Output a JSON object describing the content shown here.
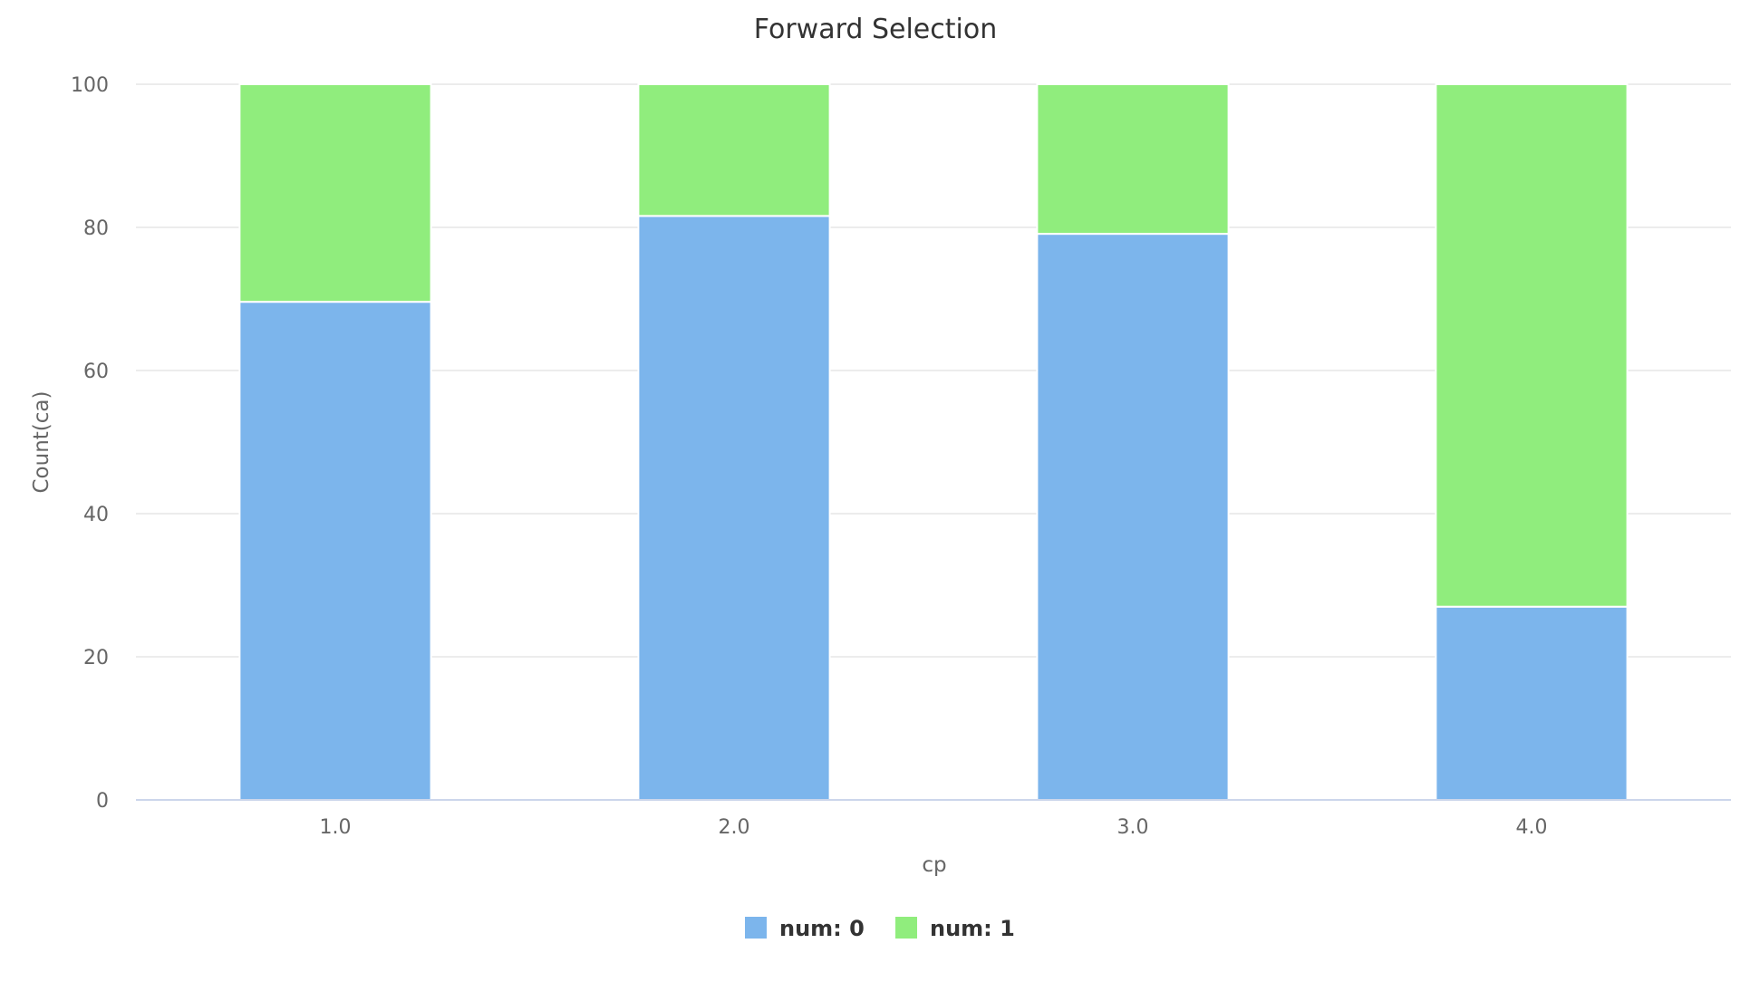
{
  "chart_data": {
    "type": "bar",
    "stacked": true,
    "percent_stacked": true,
    "title": "Forward Selection",
    "xlabel": "cp",
    "ylabel": "Count(ca)",
    "categories": [
      "1.0",
      "2.0",
      "3.0",
      "4.0"
    ],
    "ylim": [
      0,
      100
    ],
    "yticks": [
      "0",
      "20",
      "40",
      "60",
      "80",
      "100"
    ],
    "grid": true,
    "legend_position": "bottom-center",
    "series": [
      {
        "name": "num: 0",
        "color": "#7cb5ec",
        "values": [
          69.6,
          81.6,
          79.1,
          27.0
        ]
      },
      {
        "name": "num: 1",
        "color": "#90ed7d",
        "values": [
          30.4,
          18.4,
          20.9,
          73.0
        ]
      }
    ]
  }
}
